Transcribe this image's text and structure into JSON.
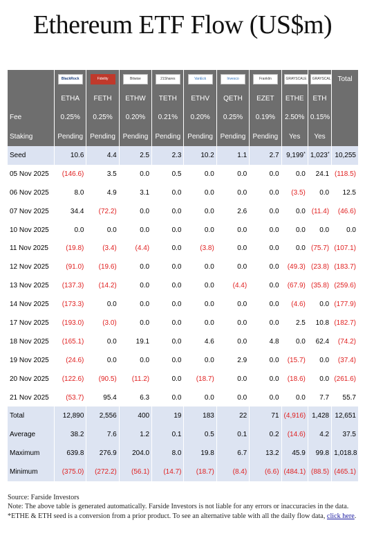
{
  "title": "Ethereum ETF Flow (US$m)",
  "logos": [
    "BlackRock",
    "Fidelity",
    "Bitwise",
    "21Shares",
    "VanEck",
    "Invesco",
    "Franklin",
    "GRAYSCALE",
    "GRAYSCALE"
  ],
  "total_label": "Total",
  "tickers": [
    "ETHA",
    "FETH",
    "ETHW",
    "TETH",
    "ETHV",
    "QETH",
    "EZET",
    "ETHE",
    "ETH"
  ],
  "fee_label": "Fee",
  "fees": [
    "0.25%",
    "0.25%",
    "0.20%",
    "0.21%",
    "0.20%",
    "0.25%",
    "0.19%",
    "2.50%",
    "0.15%"
  ],
  "staking_label": "Staking",
  "staking": [
    "Pending",
    "Pending",
    "Pending",
    "Pending",
    "Pending",
    "Pending",
    "Pending",
    "Yes",
    "Yes"
  ],
  "rows": [
    {
      "label": "Seed",
      "cells": [
        "10.6",
        "4.4",
        "2.5",
        "2.3",
        "10.2",
        "1.1",
        "2.7",
        "9,199*",
        "1,023*",
        "10,255"
      ]
    },
    {
      "label": "05 Nov 2025",
      "cells": [
        "(146.6)",
        "3.5",
        "0.0",
        "0.5",
        "0.0",
        "0.0",
        "0.0",
        "0.0",
        "24.1",
        "(118.5)"
      ]
    },
    {
      "label": "06 Nov 2025",
      "cells": [
        "8.0",
        "4.9",
        "3.1",
        "0.0",
        "0.0",
        "0.0",
        "0.0",
        "(3.5)",
        "0.0",
        "12.5"
      ]
    },
    {
      "label": "07 Nov 2025",
      "cells": [
        "34.4",
        "(72.2)",
        "0.0",
        "0.0",
        "0.0",
        "2.6",
        "0.0",
        "0.0",
        "(11.4)",
        "(46.6)"
      ]
    },
    {
      "label": "10 Nov 2025",
      "cells": [
        "0.0",
        "0.0",
        "0.0",
        "0.0",
        "0.0",
        "0.0",
        "0.0",
        "0.0",
        "0.0",
        "0.0"
      ]
    },
    {
      "label": "11 Nov 2025",
      "cells": [
        "(19.8)",
        "(3.4)",
        "(4.4)",
        "0.0",
        "(3.8)",
        "0.0",
        "0.0",
        "0.0",
        "(75.7)",
        "(107.1)"
      ]
    },
    {
      "label": "12 Nov 2025",
      "cells": [
        "(91.0)",
        "(19.6)",
        "0.0",
        "0.0",
        "0.0",
        "0.0",
        "0.0",
        "(49.3)",
        "(23.8)",
        "(183.7)"
      ]
    },
    {
      "label": "13 Nov 2025",
      "cells": [
        "(137.3)",
        "(14.2)",
        "0.0",
        "0.0",
        "0.0",
        "(4.4)",
        "0.0",
        "(67.9)",
        "(35.8)",
        "(259.6)"
      ]
    },
    {
      "label": "14 Nov 2025",
      "cells": [
        "(173.3)",
        "0.0",
        "0.0",
        "0.0",
        "0.0",
        "0.0",
        "0.0",
        "(4.6)",
        "0.0",
        "(177.9)"
      ]
    },
    {
      "label": "17 Nov 2025",
      "cells": [
        "(193.0)",
        "(3.0)",
        "0.0",
        "0.0",
        "0.0",
        "0.0",
        "0.0",
        "2.5",
        "10.8",
        "(182.7)"
      ]
    },
    {
      "label": "18 Nov 2025",
      "cells": [
        "(165.1)",
        "0.0",
        "19.1",
        "0.0",
        "4.6",
        "0.0",
        "4.8",
        "0.0",
        "62.4",
        "(74.2)"
      ]
    },
    {
      "label": "19 Nov 2025",
      "cells": [
        "(24.6)",
        "0.0",
        "0.0",
        "0.0",
        "0.0",
        "2.9",
        "0.0",
        "(15.7)",
        "0.0",
        "(37.4)"
      ]
    },
    {
      "label": "20 Nov 2025",
      "cells": [
        "(122.6)",
        "(90.5)",
        "(11.2)",
        "0.0",
        "(18.7)",
        "0.0",
        "0.0",
        "(18.6)",
        "0.0",
        "(261.6)"
      ]
    },
    {
      "label": "21 Nov 2025",
      "cells": [
        "(53.7)",
        "95.4",
        "6.3",
        "0.0",
        "0.0",
        "0.0",
        "0.0",
        "0.0",
        "7.7",
        "55.7"
      ]
    }
  ],
  "summary": [
    {
      "label": "Total",
      "cells": [
        "12,890",
        "2,556",
        "400",
        "19",
        "183",
        "22",
        "71",
        "(4,916)",
        "1,428",
        "12,651"
      ]
    },
    {
      "label": "Average",
      "cells": [
        "38.2",
        "7.6",
        "1.2",
        "0.1",
        "0.5",
        "0.1",
        "0.2",
        "(14.6)",
        "4.2",
        "37.5"
      ]
    },
    {
      "label": "Maximum",
      "cells": [
        "639.8",
        "276.9",
        "204.0",
        "8.0",
        "19.8",
        "6.7",
        "13.2",
        "45.9",
        "99.8",
        "1,018.8"
      ]
    },
    {
      "label": "Minimum",
      "cells": [
        "(375.0)",
        "(272.2)",
        "(56.1)",
        "(14.7)",
        "(18.7)",
        "(8.4)",
        "(6.6)",
        "(484.1)",
        "(88.5)",
        "(465.1)"
      ]
    }
  ],
  "notes": {
    "source": "Source: Farside Investors",
    "note": "Note: The above table is generated automatically. Farside Investors is not liable for any errors or inaccuracies in the data. *ETHE & ETH seed is a conversion from a prior product.  To see an alternative table with all the daily flow data,",
    "link": "click here",
    "end": "."
  }
}
